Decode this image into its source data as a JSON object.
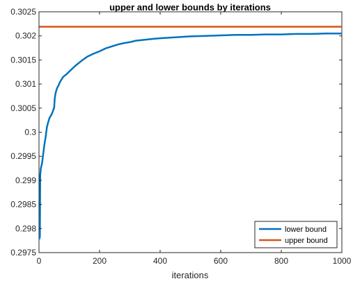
{
  "chart_data": {
    "type": "line",
    "title": "upper and lower bounds by iterations",
    "xlabel": "iterations",
    "ylabel": "",
    "xlim": [
      0,
      1000
    ],
    "ylim": [
      0.2975,
      0.3025
    ],
    "x_ticks": [
      0,
      200,
      400,
      600,
      800,
      1000
    ],
    "x_tick_labels": [
      "0",
      "200",
      "400",
      "600",
      "800",
      "1000"
    ],
    "y_ticks": [
      0.2975,
      0.298,
      0.2985,
      0.299,
      0.2995,
      0.3,
      0.3005,
      0.301,
      0.3015,
      0.302,
      0.3025
    ],
    "y_tick_labels": [
      "0.2975",
      "0.298",
      "0.2985",
      "0.299",
      "0.2995",
      "0.3",
      "0.3005",
      "0.301",
      "0.3015",
      "0.302",
      "0.3025"
    ],
    "grid": false,
    "legend_position": "bottom-right",
    "series": [
      {
        "name": "lower bound",
        "color": "#0072BD",
        "x": [
          1,
          2,
          3,
          4,
          6,
          8,
          10,
          14,
          18,
          22,
          26,
          30,
          35,
          40,
          45,
          48,
          50,
          52,
          55,
          60,
          65,
          70,
          80,
          90,
          100,
          120,
          140,
          160,
          180,
          200,
          220,
          240,
          260,
          280,
          300,
          320,
          350,
          380,
          400,
          450,
          500,
          550,
          600,
          650,
          700,
          750,
          800,
          850,
          900,
          950,
          1000
        ],
        "y": [
          0.29778,
          0.2978,
          0.29785,
          0.2991,
          0.29925,
          0.2993,
          0.29935,
          0.29955,
          0.29975,
          0.2999,
          0.3001,
          0.3002,
          0.3003,
          0.30035,
          0.30042,
          0.30048,
          0.3005,
          0.3007,
          0.30082,
          0.30092,
          0.30098,
          0.30105,
          0.30115,
          0.3012,
          0.30126,
          0.30138,
          0.30148,
          0.30157,
          0.30163,
          0.30168,
          0.30174,
          0.30178,
          0.30182,
          0.30185,
          0.30187,
          0.3019,
          0.30192,
          0.30194,
          0.30195,
          0.30197,
          0.30199,
          0.302,
          0.30201,
          0.30202,
          0.30202,
          0.30203,
          0.30203,
          0.30204,
          0.30204,
          0.30205,
          0.30205
        ]
      },
      {
        "name": "upper bound",
        "color": "#D95319",
        "x": [
          1,
          1000
        ],
        "y": [
          0.30219,
          0.30219
        ]
      }
    ]
  }
}
